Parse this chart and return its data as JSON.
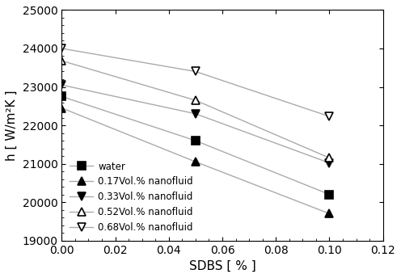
{
  "title": "",
  "xlabel": "SDBS [ % ]",
  "ylabel": "h [ W/m²K ]",
  "xlim": [
    0,
    0.12
  ],
  "ylim": [
    19000,
    25000
  ],
  "xticks": [
    0.0,
    0.02,
    0.04,
    0.06,
    0.08,
    0.1,
    0.12
  ],
  "yticks": [
    19000,
    20000,
    21000,
    22000,
    23000,
    24000,
    25000
  ],
  "series": [
    {
      "label": "water",
      "x": [
        0.0,
        0.05,
        0.1
      ],
      "y": [
        22750,
        21600,
        20200
      ],
      "marker": "s",
      "filled": true
    },
    {
      "label": "0.17Vol.% nanofluid",
      "x": [
        0.0,
        0.05,
        0.1
      ],
      "y": [
        22450,
        21050,
        19700
      ],
      "marker": "^",
      "filled": true
    },
    {
      "label": "0.33Vol.% nanofluid",
      "x": [
        0.0,
        0.05,
        0.1
      ],
      "y": [
        23050,
        22300,
        21020
      ],
      "marker": "v",
      "filled": true
    },
    {
      "label": "0.52Vol.% nanofluid",
      "x": [
        0.0,
        0.05,
        0.1
      ],
      "y": [
        23680,
        22650,
        21150
      ],
      "marker": "^",
      "filled": false
    },
    {
      "label": "0.68Vol.% nanofluid",
      "x": [
        0.0,
        0.05,
        0.1
      ],
      "y": [
        24000,
        23400,
        22230
      ],
      "marker": "v",
      "filled": false
    }
  ],
  "line_color": "#aaaaaa",
  "markersize": 7,
  "markeredgewidth": 1.2,
  "linewidth": 1.0,
  "legend_loc": "lower left",
  "legend_fontsize": 8.5,
  "tick_fontsize": 10,
  "label_fontsize": 11,
  "figsize": [
    4.96,
    3.44
  ],
  "dpi": 100
}
